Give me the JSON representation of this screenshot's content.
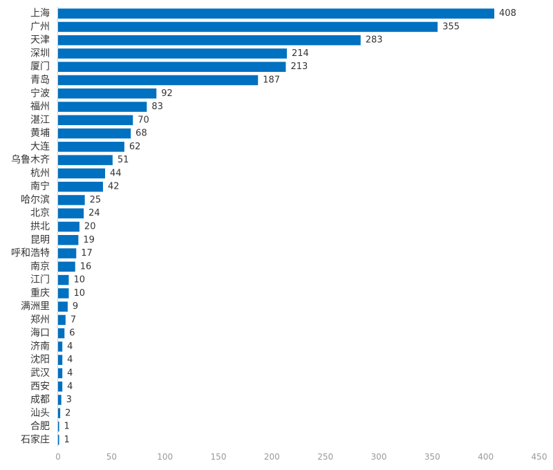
{
  "chart_data": {
    "type": "bar",
    "orientation": "horizontal",
    "title": "",
    "xlabel": "",
    "ylabel": "",
    "bar_color": "#0070c0",
    "xlim": [
      0,
      450
    ],
    "xticks": [
      0,
      50,
      100,
      150,
      200,
      250,
      300,
      350,
      400,
      450
    ],
    "grid": false,
    "data_labels": true,
    "categories": [
      "上海",
      "广州",
      "天津",
      "深圳",
      "厦门",
      "青岛",
      "宁波",
      "福州",
      "湛江",
      "黄埔",
      "大连",
      "乌鲁木齐",
      "杭州",
      "南宁",
      "哈尔滨",
      "北京",
      "拱北",
      "昆明",
      "呼和浩特",
      "南京",
      "江门",
      "重庆",
      "满洲里",
      "郑州",
      "海口",
      "济南",
      "沈阳",
      "武汉",
      "西安",
      "成都",
      "汕头",
      "合肥",
      "石家庄"
    ],
    "values": [
      408,
      355,
      283,
      214,
      213,
      187,
      92,
      83,
      70,
      68,
      62,
      51,
      44,
      42,
      25,
      24,
      20,
      19,
      17,
      16,
      10,
      10,
      9,
      7,
      6,
      4,
      4,
      4,
      4,
      3,
      2,
      1,
      1
    ]
  }
}
